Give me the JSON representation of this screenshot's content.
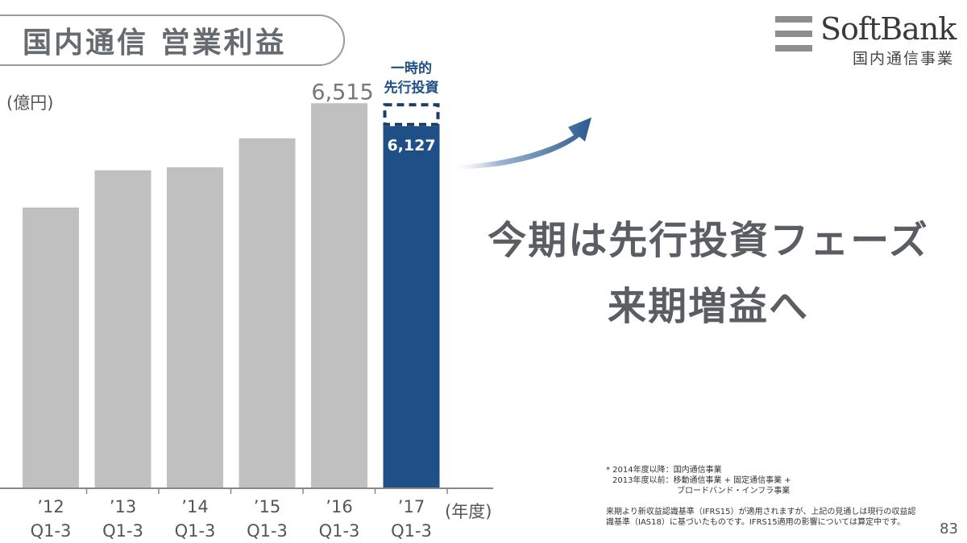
{
  "header": {
    "title": "国内通信 営業利益"
  },
  "logo": {
    "name": "SoftBank",
    "sub": "国内通信事業"
  },
  "unit_label": "(億円)",
  "x_unit_label": "(年度)",
  "headline": {
    "line1": "今期は先行投資フェーズ",
    "line2": "来期増益へ"
  },
  "footnote": {
    "line1": "* 2014年度以降：国内通信事業",
    "line2": "2013年度以前：移動通信事業 + 固定通信事業 +",
    "line3": "ブロードバンド・インフラ事業",
    "note": "来期より新収益認識基準（IFRS15）が適用されますが、上記の見通しは現行の収益認識基準（IAS18）に基づいたものです。IFRS15適用の影響については算定中です。"
  },
  "page_number": "83",
  "colors": {
    "gray_bar": "#c0c0c0",
    "highlight_bar": "#1e4f86",
    "dashed_box": "#1b3c66",
    "annotation_text": "#1e4f86",
    "arrow": "#2a5b92"
  },
  "chart_data": {
    "type": "bar",
    "categories": [
      "'12 Q1-3",
      "'13 Q1-3",
      "'14 Q1-3",
      "'15 Q1-3",
      "'16 Q1-3",
      "'17 Q1-3"
    ],
    "category_years": [
      "’12",
      "’13",
      "’14",
      "’15",
      "’16",
      "’17"
    ],
    "category_periods": [
      "Q1-3",
      "Q1-3",
      "Q1-3",
      "Q1-3",
      "Q1-3",
      "Q1-3"
    ],
    "values": [
      4750,
      5380,
      5430,
      5920,
      6515,
      6127
    ],
    "labels": [
      "",
      "",
      "",
      "",
      "6,515",
      "6,127"
    ],
    "highlight_index": 5,
    "ylim": [
      0,
      6900
    ],
    "annotation": {
      "line1": "一時的",
      "line2": "先行投資",
      "dashed_top_value": 6515
    },
    "ylabel": "(億円)",
    "xlabel": "(年度)"
  }
}
